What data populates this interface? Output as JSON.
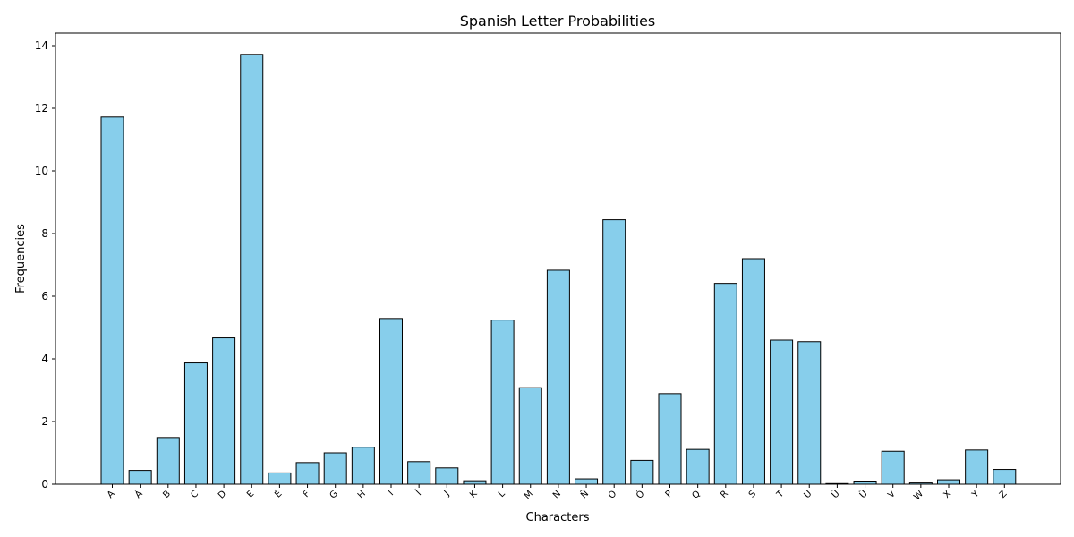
{
  "chart_data": {
    "type": "bar",
    "title": "Spanish Letter Probabilities",
    "xlabel": "Characters",
    "ylabel": "Frequencies",
    "ylim": [
      0,
      14.4
    ],
    "yticks": [
      "0",
      "2",
      "4",
      "6",
      "8",
      "10",
      "12",
      "14"
    ],
    "grid": false,
    "bar_color": "#87ceeb",
    "edge_color": "#000000",
    "categories": [
      "A",
      "Á",
      "B",
      "C",
      "D",
      "E",
      "É",
      "F",
      "G",
      "H",
      "I",
      "Í",
      "J",
      "K",
      "L",
      "M",
      "N",
      "Ñ",
      "O",
      "Ó",
      "P",
      "Q",
      "R",
      "S",
      "T",
      "U",
      "Ú",
      "Ü",
      "V",
      "W",
      "X",
      "Y",
      "Z"
    ],
    "values": [
      11.72,
      0.44,
      1.49,
      3.87,
      4.67,
      13.72,
      0.36,
      0.69,
      1.0,
      1.18,
      5.29,
      0.72,
      0.52,
      0.11,
      5.24,
      3.08,
      6.83,
      0.17,
      8.44,
      0.76,
      2.89,
      1.11,
      6.41,
      7.2,
      4.6,
      4.55,
      0.02,
      0.1,
      1.05,
      0.04,
      0.14,
      1.09,
      0.47
    ]
  }
}
